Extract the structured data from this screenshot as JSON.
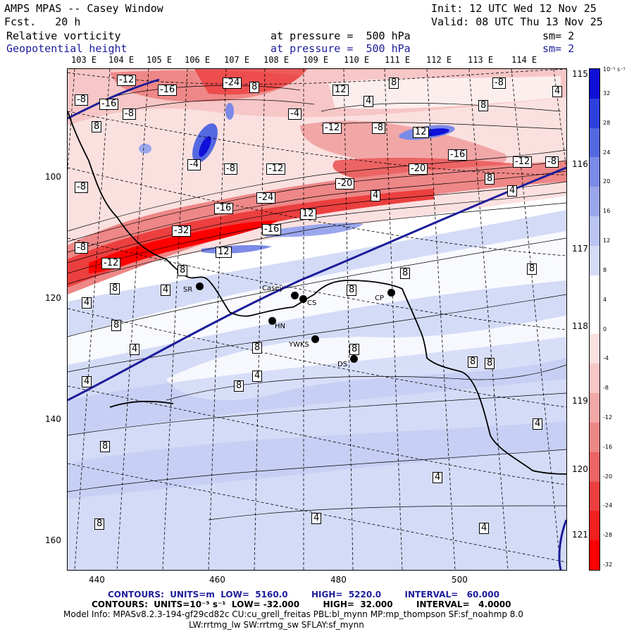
{
  "header": {
    "title": "AMPS MPAS -- Casey Window",
    "forecast": "Fcst.   20 h",
    "init": "Init: 12 UTC Wed 12 Nov 25",
    "valid": "Valid: 08 UTC Thu 13 Nov 25"
  },
  "fields": [
    {
      "name": "Relative vorticity",
      "pressure": "at pressure =  500 hPa",
      "smooth": "sm= 2"
    },
    {
      "name": "Geopotential height",
      "pressure": "at pressure =  500 hPa",
      "smooth": "sm= 2"
    }
  ],
  "map": {
    "longitude_labels_top": [
      "103 E",
      "104 E",
      "105 E",
      "106 E",
      "107 E",
      "108 E",
      "109 E",
      "110 E",
      "111 E",
      "112 E",
      "113 E",
      "114 E"
    ],
    "longitude_labels_right": [
      "115 E",
      "116 E",
      "117 E",
      "118 E",
      "119 E",
      "120 E",
      "121 E"
    ],
    "x_ticks": [
      "440",
      "460",
      "480",
      "500"
    ],
    "y_ticks": [
      "100",
      "120",
      "140",
      "160"
    ],
    "sites": [
      {
        "id": "SR",
        "label": "SR"
      },
      {
        "id": "Casey",
        "label": "Casey"
      },
      {
        "id": "CS",
        "label": "CS"
      },
      {
        "id": "HN",
        "label": "HN"
      },
      {
        "id": "YWKS",
        "label": "YWKS"
      },
      {
        "id": "DS",
        "label": "DS"
      },
      {
        "id": "CP",
        "label": "CP"
      }
    ],
    "contour_labels": [
      "-12",
      "-16",
      "-24",
      "8",
      "-8",
      "-16",
      "-8",
      "8",
      "-4",
      "-12",
      "-8",
      "12",
      "4",
      "8",
      "12",
      "-8",
      "4",
      "8",
      "-8",
      "-4",
      "-8",
      "-12",
      "-20",
      "-16",
      "-12",
      "-8",
      "4",
      "-20",
      "4",
      "8",
      "-16",
      "-24",
      "12",
      "-32",
      "-16",
      "-8",
      "-12",
      "12",
      "8",
      "8",
      "4",
      "8",
      "8",
      "8",
      "4",
      "8",
      "4",
      "4",
      "8",
      "8",
      "4",
      "8",
      "8",
      "8",
      "8",
      "4",
      "4",
      "4",
      "8",
      "4"
    ]
  },
  "colorbar": {
    "unit": "10⁻⁵ s⁻¹",
    "values": [
      32,
      28,
      24,
      20,
      16,
      12,
      8,
      4,
      0,
      -4,
      -8,
      -12,
      -16,
      -20,
      -24,
      -28,
      -32
    ],
    "colors": [
      "#1010d8",
      "#2f3fdc",
      "#5468e0",
      "#7b8ae6",
      "#9ba7ec",
      "#bac4f2",
      "#d4dbf7",
      "#ffffff",
      "#ffffff",
      "#fbe0e0",
      "#f7c6c6",
      "#f2a7a7",
      "#ee8787",
      "#ec6464",
      "#ec3f3f",
      "#f21f1f",
      "#ff0000"
    ]
  },
  "footer": {
    "line1": "CONTOURS:  UNITS=m  LOW=  5160.0        HIGH=  5220.0        INTERVAL=   60.000",
    "line2": "CONTOURS:  UNITS=10⁻⁵ s⁻¹  LOW= -32.000        HIGH=  32.000        INTERVAL=   4.0000",
    "line3": "Model Info: MPASv8.2.3-194-gf29cd82c CU:cu_grell_freitas PBL:bl_mynn MP:mp_thompson SF:sf_noahmp 8.0",
    "line4": "LW:rrtmg_lw SW:rrtmg_sw SFLAY:sf_mynn"
  }
}
